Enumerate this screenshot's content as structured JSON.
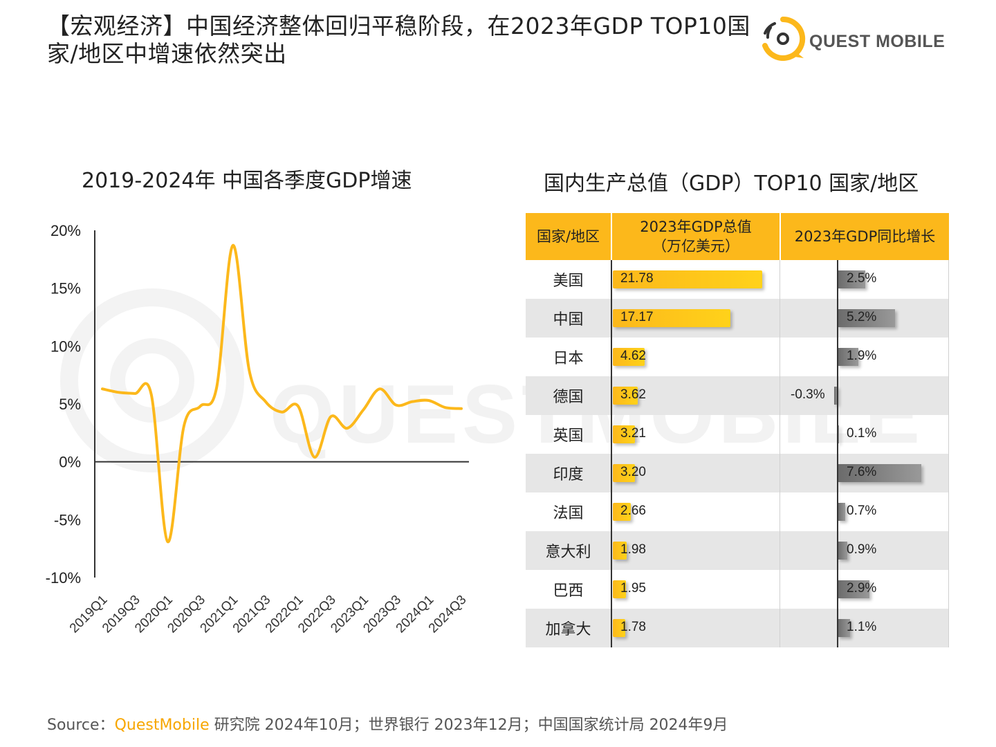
{
  "header": {
    "title": "【宏观经济】中国经济整体回归平稳阶段，在2023年GDP TOP10国家/地区中增速依然突出",
    "logo_text": "QUEST MOBILE"
  },
  "watermark_text": "QUESTMOBILE",
  "colors": {
    "accent": "#fcb81b",
    "line": "#fcb81b",
    "gray_bar": "#808080",
    "alt_row": "#e6e6e6"
  },
  "chart_data": [
    {
      "type": "line",
      "title": "2019-2024年 中国各季度GDP增速",
      "x": [
        "2019Q1",
        "2019Q2",
        "2019Q3",
        "2019Q4",
        "2020Q1",
        "2020Q2",
        "2020Q3",
        "2020Q4",
        "2021Q1",
        "2021Q2",
        "2021Q3",
        "2021Q4",
        "2022Q1",
        "2022Q2",
        "2022Q3",
        "2022Q4",
        "2023Q1",
        "2023Q2",
        "2023Q3",
        "2023Q4",
        "2024Q1",
        "2024Q2",
        "2024Q3"
      ],
      "x_tick_labels": [
        "2019Q1",
        "2019Q3",
        "2020Q1",
        "2020Q3",
        "2021Q1",
        "2021Q3",
        "2022Q1",
        "2022Q3",
        "2023Q1",
        "2023Q3",
        "2024Q1",
        "2024Q3"
      ],
      "series": [
        {
          "values": [
            6.3,
            6.0,
            5.9,
            5.8,
            -6.9,
            3.1,
            4.8,
            6.4,
            18.7,
            7.9,
            5.2,
            4.3,
            4.8,
            0.4,
            3.9,
            2.9,
            4.5,
            6.3,
            4.9,
            5.2,
            5.3,
            4.7,
            4.6
          ]
        }
      ],
      "ylim": [
        -10,
        20
      ],
      "y_ticks": [
        20,
        15,
        10,
        5,
        0,
        -5,
        -10
      ],
      "y_tick_labels": [
        "20%",
        "15%",
        "10%",
        "5%",
        "0%",
        "-5%",
        "-10%"
      ],
      "grid": false
    },
    {
      "type": "table",
      "title": "国内生产总值（GDP）TOP10 国家/地区",
      "columns": [
        "国家/地区",
        "2023年GDP总值\n（万亿美元）",
        "2023年GDP同比增长"
      ],
      "rows": [
        {
          "name": "美国",
          "gdp": 21.78,
          "gdp_label": "21.78",
          "growth": 2.5,
          "growth_label": "2.5%"
        },
        {
          "name": "中国",
          "gdp": 17.17,
          "gdp_label": "17.17",
          "growth": 5.2,
          "growth_label": "5.2%"
        },
        {
          "name": "日本",
          "gdp": 4.62,
          "gdp_label": "4.62",
          "growth": 1.9,
          "growth_label": "1.9%"
        },
        {
          "name": "德国",
          "gdp": 3.62,
          "gdp_label": "3.62",
          "growth": -0.3,
          "growth_label": "-0.3%"
        },
        {
          "name": "英国",
          "gdp": 3.21,
          "gdp_label": "3.21",
          "growth": 0.1,
          "growth_label": "0.1%"
        },
        {
          "name": "印度",
          "gdp": 3.2,
          "gdp_label": "3.20",
          "growth": 7.6,
          "growth_label": "7.6%"
        },
        {
          "name": "法国",
          "gdp": 2.66,
          "gdp_label": "2.66",
          "growth": 0.7,
          "growth_label": "0.7%"
        },
        {
          "name": "意大利",
          "gdp": 1.98,
          "gdp_label": "1.98",
          "growth": 0.9,
          "growth_label": "0.9%"
        },
        {
          "name": "巴西",
          "gdp": 1.95,
          "gdp_label": "1.95",
          "growth": 2.9,
          "growth_label": "2.9%"
        },
        {
          "name": "加拿大",
          "gdp": 1.78,
          "gdp_label": "1.78",
          "growth": 1.1,
          "growth_label": "1.1%"
        }
      ]
    }
  ],
  "source": {
    "prefix": "Source：",
    "brand": "QuestMobile",
    "rest": " 研究院 2024年10月；世界银行 2023年12月；中国国家统计局 2024年9月"
  }
}
